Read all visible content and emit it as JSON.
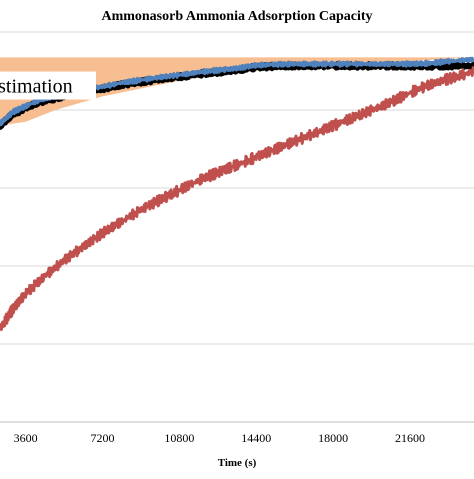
{
  "chart_data": {
    "type": "line",
    "title": "Ammonasorb Ammonia Adsorption Capacity",
    "xlabel": "Time (s)",
    "ylabel": "",
    "xlim": [
      2400,
      24600
    ],
    "ylim": [
      0,
      1
    ],
    "x_ticks": [
      3600,
      7200,
      10800,
      14400,
      18000,
      21600
    ],
    "grid": "horizontal",
    "legend": "none",
    "annotation": {
      "text": "stimation",
      "x": 2500,
      "y": 0.855
    },
    "shaded_region": {
      "name": "estimation",
      "color": "#f7be91",
      "top": [
        [
          2400,
          0.935
        ],
        [
          14000,
          0.935
        ],
        [
          24600,
          0.935
        ]
      ],
      "bottom": [
        [
          2400,
          0.76
        ],
        [
          3600,
          0.77
        ],
        [
          5000,
          0.8
        ],
        [
          7200,
          0.835
        ],
        [
          9000,
          0.855
        ],
        [
          10800,
          0.875
        ],
        [
          12600,
          0.895
        ],
        [
          14400,
          0.912
        ],
        [
          16200,
          0.92
        ],
        [
          18000,
          0.922
        ],
        [
          21600,
          0.925
        ],
        [
          24600,
          0.935
        ]
      ]
    },
    "series": [
      {
        "color": "#000000",
        "x": [
          2400,
          2700,
          3000,
          3600,
          4200,
          5000,
          6000,
          7200,
          8100,
          9000,
          10000,
          10800,
          11700,
          12600,
          13500,
          14400,
          15300,
          16200,
          17000,
          18000,
          19000,
          20000,
          21000,
          21600,
          22500,
          23400,
          24600
        ],
        "y": [
          0.76,
          0.775,
          0.79,
          0.805,
          0.82,
          0.83,
          0.845,
          0.855,
          0.865,
          0.872,
          0.88,
          0.885,
          0.892,
          0.897,
          0.902,
          0.91,
          0.912,
          0.913,
          0.913,
          0.913,
          0.913,
          0.913,
          0.913,
          0.913,
          0.913,
          0.913,
          0.913
        ]
      },
      {
        "color": "#4f81bd",
        "x": [
          2400,
          2700,
          3000,
          3600,
          4200,
          5000,
          6000,
          7200,
          8100,
          9000,
          10000,
          10800,
          11700,
          12600,
          13500,
          14400,
          15300,
          16200,
          17000,
          18000,
          19000,
          20000,
          21000,
          21600,
          22500,
          23400,
          24600
        ],
        "y": [
          0.765,
          0.78,
          0.795,
          0.81,
          0.825,
          0.835,
          0.85,
          0.86,
          0.87,
          0.877,
          0.885,
          0.89,
          0.897,
          0.902,
          0.907,
          0.915,
          0.917,
          0.918,
          0.918,
          0.918,
          0.918,
          0.918,
          0.918,
          0.918,
          0.92,
          0.925,
          0.93
        ]
      },
      {
        "color": "#c0504d",
        "x": [
          2400,
          3000,
          3600,
          4500,
          5400,
          6300,
          7200,
          8100,
          9000,
          9900,
          10800,
          11700,
          12600,
          13500,
          14400,
          15300,
          16200,
          17100,
          18000,
          18900,
          19800,
          20700,
          21600,
          22500,
          23400,
          24600
        ],
        "y": [
          0.24,
          0.29,
          0.33,
          0.375,
          0.415,
          0.45,
          0.485,
          0.515,
          0.545,
          0.57,
          0.595,
          0.62,
          0.64,
          0.66,
          0.68,
          0.7,
          0.72,
          0.74,
          0.76,
          0.78,
          0.8,
          0.82,
          0.845,
          0.865,
          0.88,
          0.9
        ]
      }
    ]
  }
}
